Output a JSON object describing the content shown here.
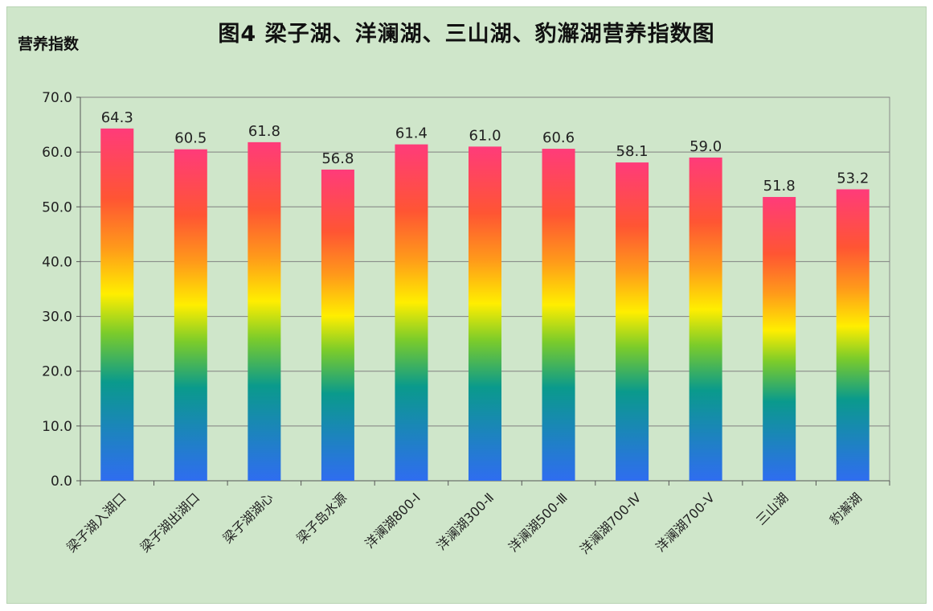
{
  "chart_data": {
    "type": "bar",
    "title": "图4  梁子湖、洋澜湖、三山湖、豹澥湖营养指数图",
    "xlabel": "",
    "ylabel": "营养指数",
    "ylim": [
      0,
      70
    ],
    "yticks": [
      "0.0",
      "10.0",
      "20.0",
      "30.0",
      "40.0",
      "50.0",
      "60.0",
      "70.0"
    ],
    "categories": [
      "梁子湖入湖口",
      "梁子湖出湖口",
      "梁子湖湖心",
      "梁子岛水源",
      "洋澜湖800-Ⅰ",
      "洋澜湖300-Ⅱ",
      "洋澜湖500-Ⅲ",
      "洋澜湖700-Ⅳ",
      "洋澜湖700-Ⅴ",
      "三山湖",
      "豹澥湖"
    ],
    "values": [
      64.3,
      60.5,
      61.8,
      56.8,
      61.4,
      61.0,
      60.6,
      58.1,
      59.0,
      51.8,
      53.2
    ],
    "value_labels": [
      "64.3",
      "60.5",
      "61.8",
      "56.8",
      "61.4",
      "61.0",
      "60.6",
      "58.1",
      "59.0",
      "51.8",
      "53.2"
    ],
    "grid": true,
    "legend": "none",
    "colors": {
      "background": "#cfe6ca",
      "plot_background": "#cfe6ca",
      "grid": "#808080",
      "gradient": [
        "#2f6df0",
        "#0a9a8c",
        "#7ccc2a",
        "#ffee00",
        "#ff9a1a",
        "#ff5533",
        "#ff3b7a"
      ]
    }
  }
}
